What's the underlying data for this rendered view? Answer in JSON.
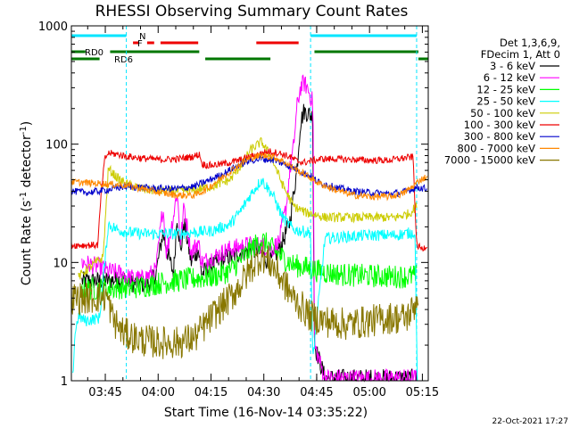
{
  "chart_data": {
    "type": "line",
    "title": "RHESSI Observing Summary Count Rates",
    "xlabel": "Start Time (16-Nov-14 03:35:22)",
    "ylabel_parts": [
      "Count Rate (s",
      "-1",
      " detector",
      "-1",
      ")"
    ],
    "yscale": "log",
    "ylim": [
      1,
      1000
    ],
    "y_ticks": [
      1,
      10,
      100,
      1000
    ],
    "y_tick_labels": [
      "1",
      "10",
      "100",
      "1000"
    ],
    "x_unit": "minutes after 03:35:22",
    "xlim": [
      0,
      101.3
    ],
    "x_ticks": [
      {
        "label": "03:45",
        "t": 9.63
      },
      {
        "label": "04:00",
        "t": 24.63
      },
      {
        "label": "04:15",
        "t": 39.63
      },
      {
        "label": "04:30",
        "t": 54.63
      },
      {
        "label": "04:45",
        "t": 69.63
      },
      {
        "label": "05:00",
        "t": 84.63
      },
      {
        "label": "05:15",
        "t": 99.63
      }
    ],
    "legend_header": [
      "Det 1,3,6,9,",
      "FDecim 1, Att 0"
    ],
    "footer_date": "22-Oct-2021 17:27",
    "dashed_markers_t": [
      15.6,
      67.9,
      98.0
    ],
    "flags": [
      {
        "label": "N",
        "color": "#00e5ff",
        "row": "top",
        "segments": [
          [
            0,
            15.6
          ],
          [
            67.9,
            98.0
          ]
        ]
      },
      {
        "label": "F",
        "color": "#ee0000",
        "row": "mid",
        "segments": [
          [
            17.5,
            19.2
          ],
          [
            21.5,
            23.5
          ],
          [
            25.3,
            36.0
          ],
          [
            52.5,
            64.5
          ]
        ]
      },
      {
        "label": "RD0",
        "color": "#007700",
        "row": "low",
        "segments": [
          [
            0,
            4
          ],
          [
            11.0,
            36.3
          ],
          [
            69.0,
            98.5
          ]
        ]
      },
      {
        "label": "RD6",
        "color": "#007700",
        "row": "bottom",
        "segments": [
          [
            0,
            8.0
          ],
          [
            38.0,
            56.5
          ],
          [
            98.5,
            101.3
          ]
        ]
      }
    ],
    "series": [
      {
        "name": "3 - 6 keV",
        "color": "#000000",
        "t": [
          3,
          9,
          15,
          15.7,
          19.5,
          22,
          24,
          26,
          27,
          29,
          30,
          31,
          32,
          34,
          36,
          37,
          40,
          44,
          48,
          52,
          54,
          56,
          57.5,
          60,
          62,
          64,
          65,
          66,
          67.5,
          68.5,
          69,
          72,
          79,
          86,
          92,
          96,
          98
        ],
        "v": [
          7,
          7,
          7.2,
          6.7,
          6.6,
          6.5,
          8,
          18,
          13,
          8,
          25,
          12,
          22,
          10,
          13,
          8,
          9.5,
          11,
          12,
          13,
          12,
          10,
          11,
          15,
          22,
          60,
          150,
          190,
          180,
          170,
          2,
          1.05,
          1.05,
          1.05,
          1.05,
          1.05,
          1.05
        ]
      },
      {
        "name": "6 - 12 keV",
        "color": "#ff00ff",
        "t": [
          3,
          9,
          10,
          15,
          15.7,
          20,
          24,
          26,
          27,
          29,
          30,
          31,
          32,
          34,
          36,
          37,
          40,
          45,
          50,
          54,
          57,
          59,
          61,
          62,
          63,
          64,
          65,
          66,
          67,
          68,
          68.6,
          69,
          72,
          79,
          86,
          92,
          96,
          98
        ],
        "v": [
          10,
          9,
          8.5,
          8,
          7.5,
          7.2,
          8.5,
          30,
          12,
          25,
          40,
          15,
          30,
          12,
          15,
          10,
          11,
          13,
          14,
          14,
          13,
          15,
          30,
          60,
          90,
          200,
          300,
          330,
          300,
          250,
          220,
          2,
          1.05,
          1.05,
          1.05,
          1.05,
          1.05,
          1.05
        ]
      },
      {
        "name": "12 - 25 keV",
        "color": "#00ff00",
        "t": [
          3,
          10,
          15,
          15.7,
          20,
          25,
          30,
          35,
          40,
          45,
          48,
          51,
          54,
          57,
          60,
          63,
          67,
          70,
          75,
          80,
          85,
          90,
          95,
          98
        ],
        "v": [
          6,
          6,
          6.2,
          6,
          6.3,
          6.7,
          7,
          7.3,
          7.6,
          8.5,
          10.5,
          13,
          15.5,
          13,
          11,
          9.5,
          9,
          8.5,
          8,
          7.8,
          7.7,
          7.6,
          7.6,
          7.7
        ]
      },
      {
        "name": "25 - 50 keV",
        "color": "#00ffff",
        "t": [
          0.4,
          1,
          2,
          4,
          8,
          10.5,
          13,
          15.6,
          16,
          20,
          25,
          30,
          35,
          40,
          45,
          48,
          51,
          54,
          57,
          60,
          63,
          67,
          67.9,
          68.5,
          72,
          78,
          85,
          92,
          97.5,
          98.2
        ],
        "v": [
          1.05,
          2.5,
          3.5,
          3.2,
          3.4,
          21,
          19,
          18,
          18,
          17.5,
          17.5,
          17.5,
          18,
          18.5,
          21,
          27,
          38,
          50,
          38,
          24,
          19,
          18,
          18,
          1.5,
          16,
          16.5,
          17,
          17,
          18,
          1.05
        ]
      },
      {
        "name": "50 - 100 keV",
        "color": "#cccc00",
        "t": [
          2,
          5,
          7,
          9,
          10.5,
          13,
          15.6,
          20,
          25,
          30,
          35,
          40,
          45,
          48,
          51,
          54,
          57,
          60,
          63,
          67,
          67.9,
          72,
          78,
          85,
          92,
          96,
          98
        ],
        "v": [
          7.5,
          9,
          10,
          11,
          62,
          52,
          46,
          42,
          40,
          40,
          41,
          44,
          50,
          65,
          90,
          105,
          75,
          45,
          30,
          26,
          26,
          24,
          24,
          24,
          24,
          26,
          30
        ]
      },
      {
        "name": "100 - 300 keV",
        "color": "#ee0000",
        "t": [
          0,
          4,
          7.5,
          8.5,
          9.5,
          10.5,
          13,
          15.6,
          20,
          25,
          30,
          34,
          36.5,
          37,
          39,
          43,
          47,
          50,
          53,
          56,
          59,
          62,
          64,
          66,
          68,
          71,
          75,
          80,
          85,
          90,
          94,
          97,
          98,
          99.5,
          101
        ],
        "v": [
          14,
          14,
          14,
          40,
          75,
          84,
          82,
          79,
          76,
          74,
          75,
          78,
          82,
          68,
          66,
          68,
          72,
          77,
          82,
          87,
          84,
          78,
          72,
          70,
          72,
          75,
          75,
          74,
          73,
          73,
          76,
          78,
          14,
          13,
          14
        ]
      },
      {
        "name": "300 - 800 keV",
        "color": "#0000cc",
        "t": [
          0,
          5,
          10,
          15.6,
          20,
          25,
          30,
          35,
          38,
          43,
          48,
          51,
          54,
          57,
          60,
          63,
          66,
          67.9,
          70,
          75,
          80,
          85,
          90,
          94,
          97,
          98,
          101
        ],
        "v": [
          40,
          39,
          41,
          44,
          43,
          42,
          42,
          44,
          48,
          56,
          68,
          73,
          75,
          74,
          69,
          63,
          57,
          54,
          48,
          43,
          40,
          39,
          38,
          39,
          42,
          43,
          42
        ]
      },
      {
        "name": "800 - 7000 keV",
        "color": "#ff8800",
        "t": [
          0,
          5,
          10,
          15.6,
          20,
          25,
          30,
          35,
          38,
          43,
          48,
          51,
          54,
          57,
          60,
          63,
          66,
          67.9,
          70,
          75,
          80,
          85,
          90,
          94,
          97,
          99,
          101
        ],
        "v": [
          48,
          47,
          46,
          45,
          42,
          39,
          37,
          37,
          41,
          53,
          68,
          77,
          80,
          79,
          72,
          63,
          56,
          52,
          47,
          41,
          37,
          36,
          36,
          38,
          44,
          50,
          53
        ]
      },
      {
        "name": "7000 - 15000 keV",
        "color": "#887700",
        "t": [
          0,
          5,
          10,
          12,
          15,
          20,
          25,
          30,
          35,
          40,
          45,
          48,
          51,
          54,
          57,
          60,
          63,
          66,
          67.9,
          72,
          78,
          85,
          90,
          95,
          97,
          98.5
        ],
        "v": [
          5,
          5,
          5.2,
          3.2,
          2.5,
          2.2,
          2.1,
          2.1,
          2.3,
          3.5,
          5,
          6.5,
          9,
          11.5,
          9.5,
          7,
          5,
          4,
          3.5,
          3.2,
          3,
          3.2,
          3.4,
          3.4,
          4,
          5.5
        ]
      }
    ]
  }
}
